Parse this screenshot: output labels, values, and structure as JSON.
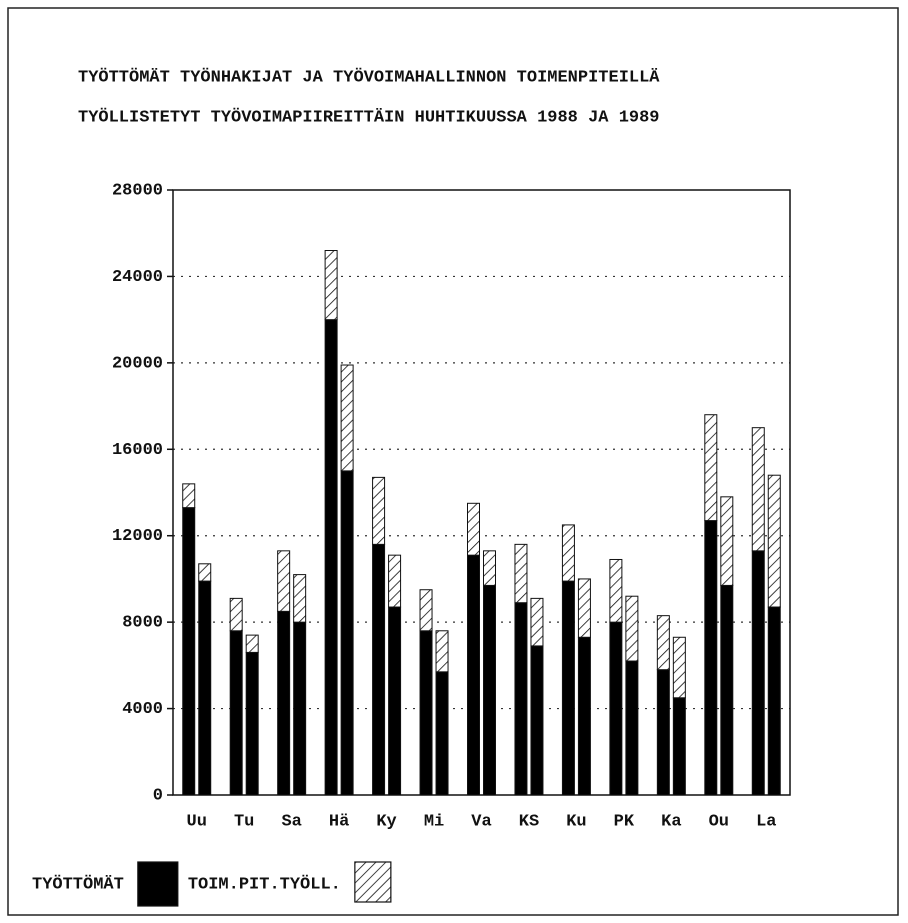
{
  "chart_data": {
    "type": "grouped-stacked-bar",
    "title": [
      "TYÖTTÖMÄT TYÖNHAKIJAT JA TYÖVOIMAHALLINNON TOIMENPITEILLÄ",
      "TYÖLLISTETYT TYÖVOIMAPIIREITTÄIN HUHTIKUUSSA 1988 JA 1989"
    ],
    "categories": [
      "Uu",
      "Tu",
      "Sa",
      "Hä",
      "Ky",
      "Mi",
      "Va",
      "KS",
      "Ku",
      "PK",
      "Ka",
      "Ou",
      "La"
    ],
    "series": [
      {
        "name": "TYÖTTÖMÄT",
        "color": "#000000",
        "values": [
          [
            13300,
            9900
          ],
          [
            7600,
            6600
          ],
          [
            8500,
            8000
          ],
          [
            22000,
            15000
          ],
          [
            11600,
            8700
          ],
          [
            7600,
            5700
          ],
          [
            11100,
            9700
          ],
          [
            8900,
            6900
          ],
          [
            9900,
            7300
          ],
          [
            8000,
            6200
          ],
          [
            5800,
            4500
          ],
          [
            12700,
            9700
          ],
          [
            11300,
            8700
          ]
        ]
      },
      {
        "name": "TOIM.PIT.TYÖLL.",
        "color": "hatch",
        "values": [
          [
            1100,
            800
          ],
          [
            1500,
            800
          ],
          [
            2800,
            2200
          ],
          [
            3200,
            4900
          ],
          [
            3100,
            2400
          ],
          [
            1900,
            1900
          ],
          [
            2400,
            1600
          ],
          [
            2700,
            2200
          ],
          [
            2600,
            2700
          ],
          [
            2900,
            3000
          ],
          [
            2500,
            2800
          ],
          [
            4900,
            4100
          ],
          [
            5700,
            6100
          ]
        ]
      }
    ],
    "ylim": [
      0,
      28000
    ],
    "yticks": [
      0,
      4000,
      8000,
      12000,
      16000,
      20000,
      24000,
      28000
    ],
    "grid": true
  }
}
